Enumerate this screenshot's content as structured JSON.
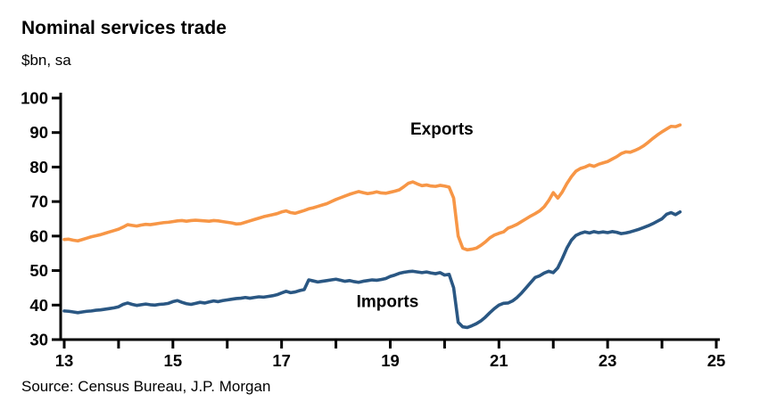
{
  "header": {
    "title": "Nominal services trade",
    "subtitle": "$bn, sa"
  },
  "footer": {
    "source": "Source: Census Bureau, J.P. Morgan"
  },
  "chart_data": {
    "type": "line",
    "title": "Nominal services trade",
    "units_label": "$bn, sa",
    "grid": false,
    "legend_position": "inline-annotations",
    "x_start_year": 2013.0,
    "x_step_years": 0.0833333,
    "xlim": [
      2013,
      2025
    ],
    "ylim": [
      30,
      100
    ],
    "y_ticks": [
      30,
      40,
      50,
      60,
      70,
      80,
      90,
      100
    ],
    "x_ticks": [
      {
        "year": 2013,
        "label": "13"
      },
      {
        "year": 2014,
        "label": ""
      },
      {
        "year": 2015,
        "label": "15"
      },
      {
        "year": 2016,
        "label": ""
      },
      {
        "year": 2017,
        "label": "17"
      },
      {
        "year": 2018,
        "label": ""
      },
      {
        "year": 2019,
        "label": "19"
      },
      {
        "year": 2020,
        "label": ""
      },
      {
        "year": 2021,
        "label": "21"
      },
      {
        "year": 2022,
        "label": ""
      },
      {
        "year": 2023,
        "label": "23"
      },
      {
        "year": 2024,
        "label": ""
      },
      {
        "year": 2025,
        "label": "25"
      }
    ],
    "axis_color": "#000000",
    "series": [
      {
        "name": "Exports",
        "color": "#F79646",
        "annotation": {
          "text": "Exports",
          "x": 2019.95,
          "y": 91.0
        },
        "values": [
          59.0,
          59.1,
          58.8,
          58.6,
          59.0,
          59.4,
          59.8,
          60.1,
          60.4,
          60.8,
          61.2,
          61.6,
          62.0,
          62.6,
          63.3,
          63.1,
          62.9,
          63.2,
          63.4,
          63.3,
          63.5,
          63.7,
          63.9,
          64.0,
          64.2,
          64.4,
          64.5,
          64.3,
          64.5,
          64.6,
          64.5,
          64.4,
          64.3,
          64.5,
          64.4,
          64.2,
          64.0,
          63.8,
          63.5,
          63.6,
          64.0,
          64.4,
          64.8,
          65.2,
          65.6,
          65.9,
          66.2,
          66.5,
          67.0,
          67.3,
          66.8,
          66.6,
          67.0,
          67.4,
          67.9,
          68.2,
          68.6,
          69.0,
          69.4,
          70.0,
          70.6,
          71.1,
          71.6,
          72.1,
          72.5,
          72.9,
          72.6,
          72.3,
          72.5,
          72.8,
          72.5,
          72.4,
          72.7,
          73.0,
          73.4,
          74.3,
          75.3,
          75.7,
          75.1,
          74.6,
          74.8,
          74.5,
          74.4,
          74.7,
          74.5,
          74.2,
          71.0,
          60.0,
          56.5,
          56.0,
          56.2,
          56.5,
          57.3,
          58.3,
          59.5,
          60.3,
          60.8,
          61.2,
          62.3,
          62.8,
          63.4,
          64.2,
          65.0,
          65.8,
          66.5,
          67.3,
          68.5,
          70.3,
          72.6,
          71.0,
          72.8,
          75.2,
          77.2,
          78.8,
          79.6,
          80.0,
          80.6,
          80.2,
          80.8,
          81.2,
          81.6,
          82.3,
          83.0,
          83.9,
          84.4,
          84.3,
          84.8,
          85.4,
          86.2,
          87.2,
          88.3,
          89.3,
          90.2,
          91.0,
          91.8,
          91.7,
          92.2
        ]
      },
      {
        "name": "Imports",
        "color": "#2A5783",
        "annotation": {
          "text": "Imports",
          "x": 2018.95,
          "y": 41.0
        },
        "values": [
          38.3,
          38.2,
          38.0,
          37.8,
          38.0,
          38.2,
          38.3,
          38.5,
          38.6,
          38.8,
          39.0,
          39.2,
          39.5,
          40.2,
          40.6,
          40.2,
          39.9,
          40.1,
          40.3,
          40.1,
          40.0,
          40.2,
          40.3,
          40.5,
          41.0,
          41.3,
          40.8,
          40.4,
          40.2,
          40.5,
          40.8,
          40.6,
          40.9,
          41.2,
          41.0,
          41.3,
          41.5,
          41.7,
          41.9,
          42.0,
          42.2,
          42.0,
          42.2,
          42.4,
          42.3,
          42.5,
          42.7,
          43.0,
          43.5,
          44.0,
          43.6,
          43.8,
          44.2,
          44.5,
          47.3,
          47.0,
          46.7,
          46.9,
          47.1,
          47.3,
          47.5,
          47.2,
          46.9,
          47.1,
          46.8,
          46.6,
          46.9,
          47.1,
          47.3,
          47.2,
          47.4,
          47.7,
          48.3,
          48.7,
          49.2,
          49.5,
          49.7,
          49.8,
          49.6,
          49.4,
          49.6,
          49.3,
          49.1,
          49.4,
          48.7,
          48.9,
          45.0,
          35.0,
          33.7,
          33.5,
          34.0,
          34.6,
          35.4,
          36.5,
          37.8,
          39.0,
          40.0,
          40.5,
          40.6,
          41.2,
          42.2,
          43.5,
          45.0,
          46.5,
          48.0,
          48.5,
          49.3,
          49.8,
          49.4,
          50.8,
          53.5,
          56.5,
          58.8,
          60.2,
          60.8,
          61.2,
          60.9,
          61.3,
          61.0,
          61.2,
          61.0,
          61.3,
          61.1,
          60.7,
          60.9,
          61.2,
          61.6,
          62.0,
          62.5,
          63.0,
          63.6,
          64.3,
          65.0,
          66.3,
          66.8,
          66.2,
          67.0
        ]
      }
    ]
  }
}
